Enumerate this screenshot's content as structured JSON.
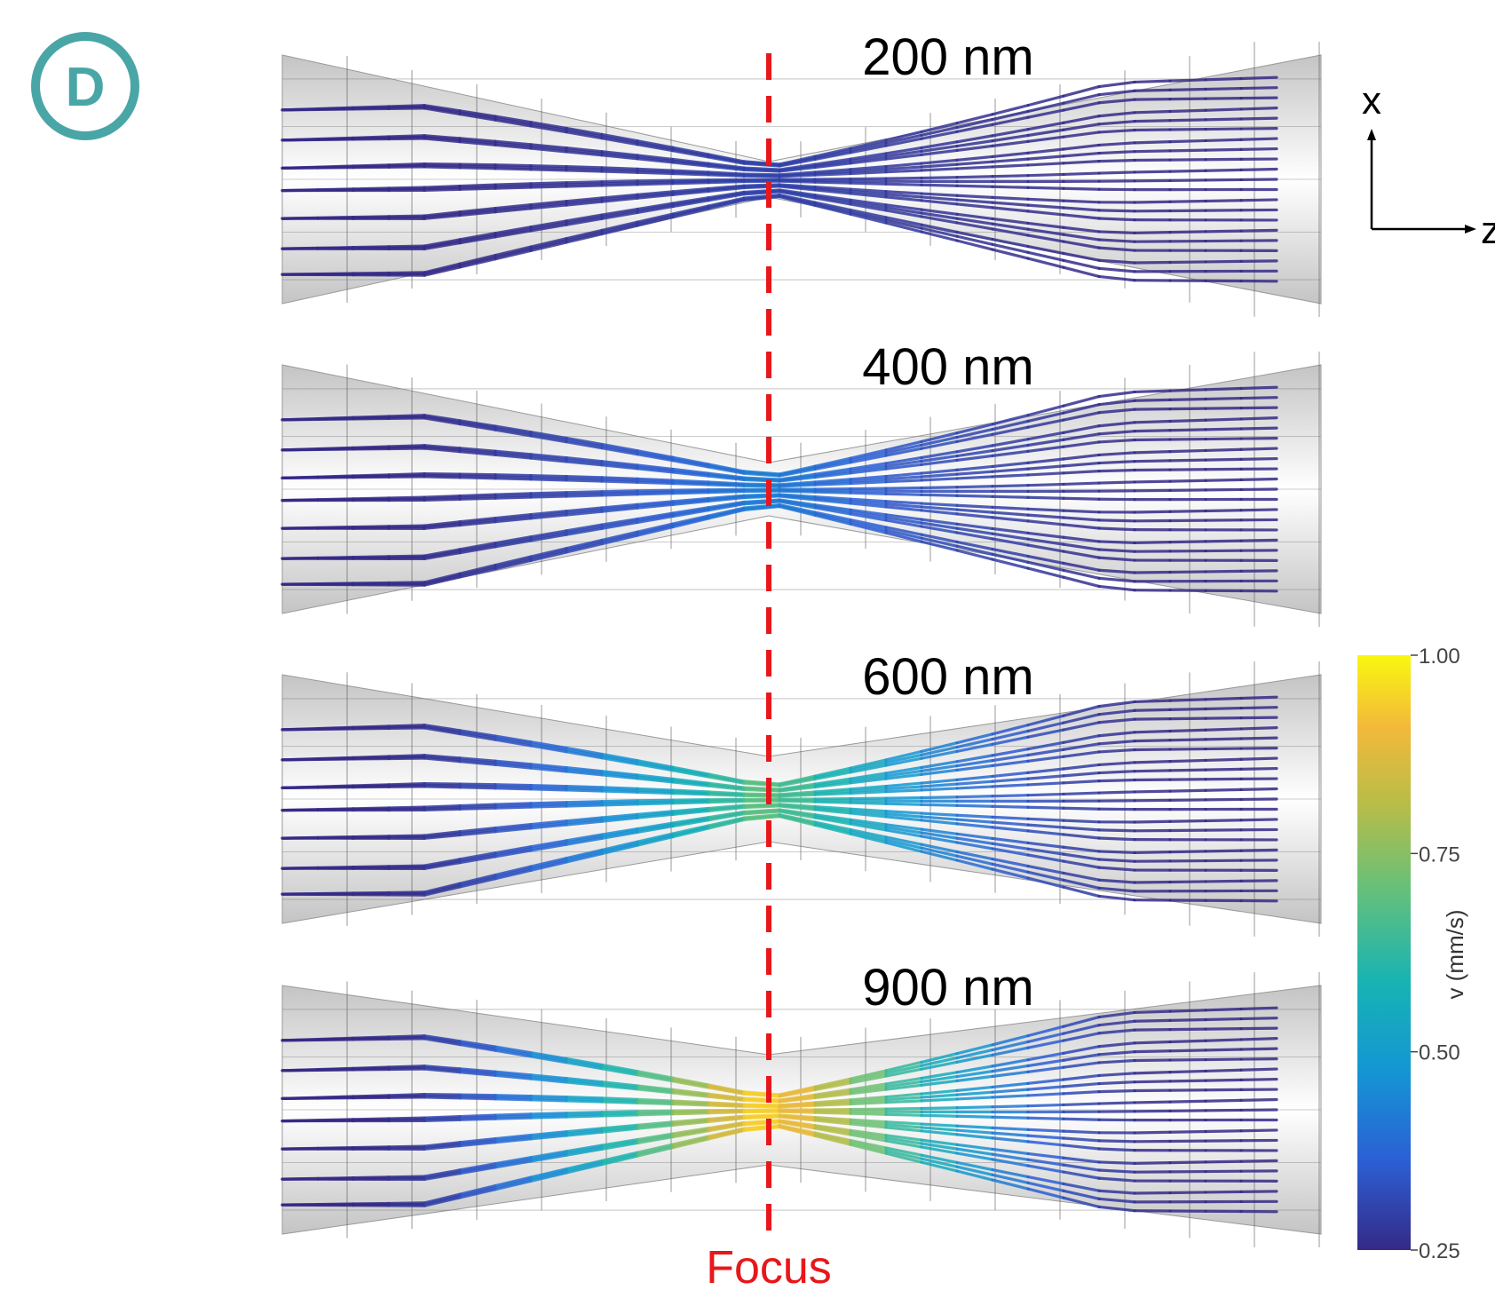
{
  "panel": {
    "badge": "D",
    "badge_color": "#4aa6a6"
  },
  "beams": [
    {
      "label": "200 nm",
      "peak_speed": 0.3,
      "tracer_rows": [
        -0.62,
        -0.35,
        -0.1,
        0.1,
        0.35,
        0.62,
        0.85
      ]
    },
    {
      "label": "400 nm",
      "peak_speed": 0.42,
      "tracer_rows": [
        -0.62,
        -0.35,
        -0.1,
        0.1,
        0.35,
        0.62,
        0.85
      ]
    },
    {
      "label": "600 nm",
      "peak_speed": 0.68,
      "tracer_rows": [
        -0.62,
        -0.35,
        -0.1,
        0.1,
        0.35,
        0.62,
        0.85
      ]
    },
    {
      "label": "900 nm",
      "peak_speed": 0.95,
      "tracer_rows": [
        -0.62,
        -0.35,
        -0.1,
        0.1,
        0.35,
        0.62,
        0.85
      ]
    }
  ],
  "focus": {
    "label": "Focus",
    "color": "#e8171b"
  },
  "axes": {
    "x_label": "x",
    "z_label": "z"
  },
  "colorbar": {
    "label": "v (mm/s)",
    "min": 0.25,
    "max": 1.0,
    "ticks": [
      "1.00",
      "0.75",
      "0.50",
      "0.25"
    ],
    "stops": [
      "#352a87",
      "#2c5fd4",
      "#1496d4",
      "#17b3b3",
      "#62c07c",
      "#b8bd48",
      "#f3b93a",
      "#f9f70f"
    ]
  }
}
